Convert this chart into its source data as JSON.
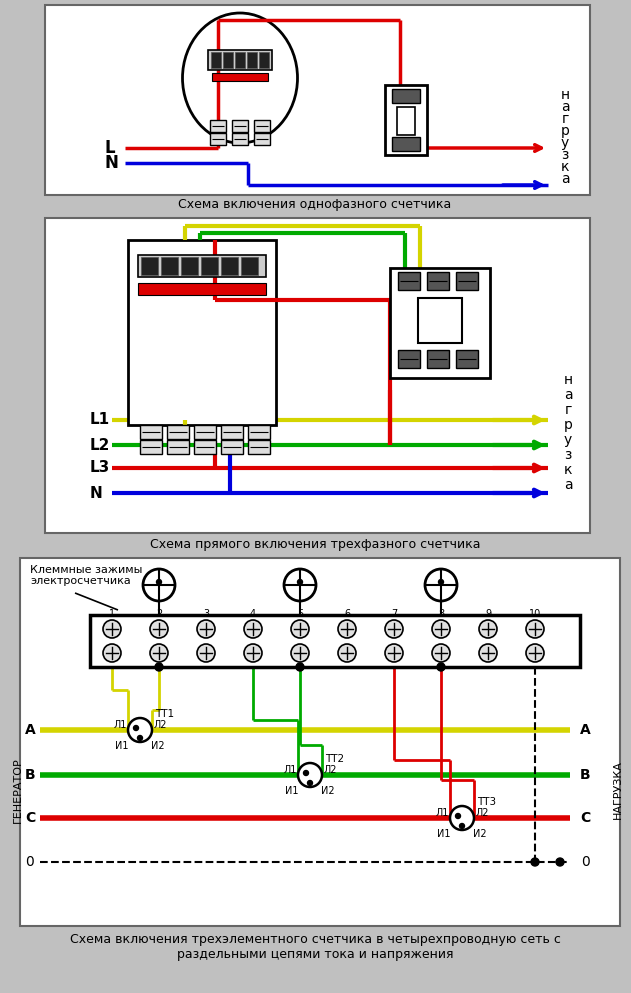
{
  "bg_color": "#c0c0c0",
  "title1": "Схема включения однофазного счетчика",
  "title2": "Схема прямого включения трехфазного счетчика",
  "title3": "Схема включения трехэлементного счетчика в четырехпроводную сеть с\nраздельными цепями тока и напряжения",
  "yellow": "#d4d400",
  "green": "#00aa00",
  "red": "#dd0000",
  "blue": "#0000dd",
  "black": "#000000",
  "white": "#ffffff",
  "gray_light": "#d8d8d8",
  "gray_med": "#aaaaaa",
  "dark_gray": "#444444"
}
